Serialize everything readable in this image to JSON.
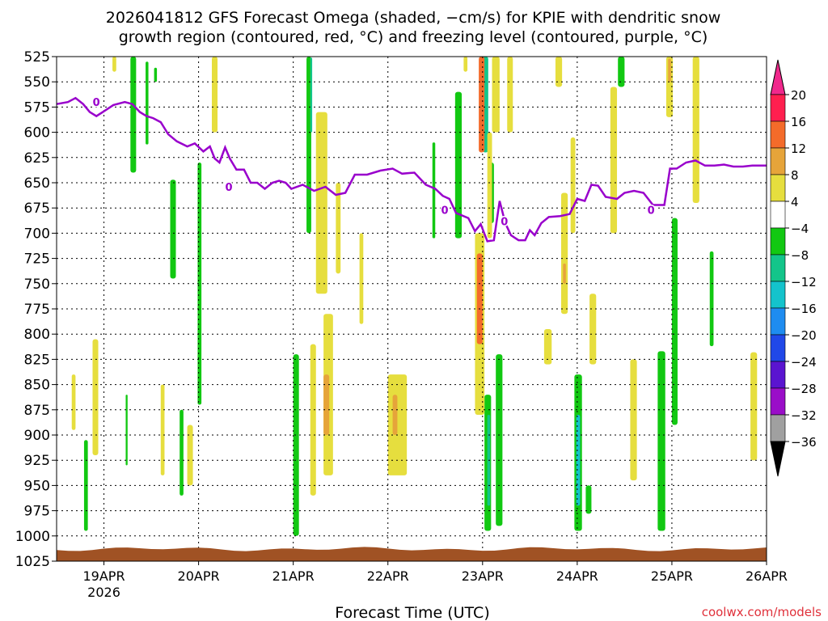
{
  "chart_data": {
    "type": "heatmap",
    "title_line1": "2026041812 GFS Forecast Omega (shaded, −cm/s) for KPIE with dendritic snow",
    "title_line2": "growth region (contoured, red, °C) and freezing level (contoured, purple, °C)",
    "xlabel": "Forecast Time (UTC)",
    "credit": "coolwx.com/models",
    "x_ticks": [
      {
        "t": 0.5,
        "label": "19APR"
      },
      {
        "t": 1.5,
        "label": "20APR"
      },
      {
        "t": 2.5,
        "label": "21APR"
      },
      {
        "t": 3.5,
        "label": "22APR"
      },
      {
        "t": 4.5,
        "label": "23APR"
      },
      {
        "t": 5.5,
        "label": "24APR"
      },
      {
        "t": 6.5,
        "label": "25APR"
      },
      {
        "t": 7.5,
        "label": "26APR"
      }
    ],
    "x_sublabel": {
      "t": 0.5,
      "label": "2026"
    },
    "x_range": [
      0,
      7.5
    ],
    "y_range": [
      525,
      1025
    ],
    "y_ticks": [
      525,
      550,
      575,
      600,
      625,
      650,
      675,
      700,
      725,
      750,
      775,
      800,
      825,
      850,
      875,
      900,
      925,
      950,
      975,
      1000,
      1025
    ],
    "colorbar": {
      "labels": [
        "20",
        "16",
        "12",
        "8",
        "4",
        "−4",
        "−8",
        "−12",
        "−16",
        "−20",
        "−24",
        "−28",
        "−32",
        "−36"
      ],
      "colors": [
        "#ff1f4f",
        "#f46b2a",
        "#e6a43a",
        "#e6de3e",
        "#ffffff",
        "#12c812",
        "#13c58a",
        "#14c3cc",
        "#1e8cf0",
        "#2048e8",
        "#5a14d0",
        "#9a0ec8",
        "#a0a0a0"
      ],
      "top_color": "#f0288c",
      "bottom_color": "#000000"
    },
    "freezing_level": {
      "color": "#9900cc",
      "label": "0",
      "points": [
        [
          0.0,
          572
        ],
        [
          0.12,
          570
        ],
        [
          0.2,
          566
        ],
        [
          0.28,
          572
        ],
        [
          0.35,
          580
        ],
        [
          0.42,
          584
        ],
        [
          0.52,
          578
        ],
        [
          0.6,
          573
        ],
        [
          0.72,
          570
        ],
        [
          0.8,
          572
        ],
        [
          0.88,
          580
        ],
        [
          0.95,
          584
        ],
        [
          1.02,
          586
        ],
        [
          1.1,
          590
        ],
        [
          1.18,
          602
        ],
        [
          1.27,
          609
        ],
        [
          1.38,
          614
        ],
        [
          1.46,
          611
        ],
        [
          1.55,
          619
        ],
        [
          1.62,
          614
        ],
        [
          1.67,
          626
        ],
        [
          1.72,
          630
        ],
        [
          1.78,
          615
        ],
        [
          1.83,
          626
        ],
        [
          1.9,
          637
        ],
        [
          1.98,
          637
        ],
        [
          2.05,
          650
        ],
        [
          2.12,
          650
        ],
        [
          2.2,
          656
        ],
        [
          2.28,
          650
        ],
        [
          2.35,
          648
        ],
        [
          2.42,
          650
        ],
        [
          2.48,
          656
        ],
        [
          2.6,
          652
        ],
        [
          2.72,
          658
        ],
        [
          2.84,
          654
        ],
        [
          2.95,
          662
        ],
        [
          3.05,
          660
        ],
        [
          3.15,
          642
        ],
        [
          3.28,
          642
        ],
        [
          3.42,
          638
        ],
        [
          3.55,
          636
        ],
        [
          3.65,
          641
        ],
        [
          3.78,
          640
        ],
        [
          3.9,
          652
        ],
        [
          4.0,
          656
        ],
        [
          4.08,
          663
        ],
        [
          4.15,
          666
        ],
        [
          4.22,
          680
        ],
        [
          4.35,
          685
        ],
        [
          4.42,
          698
        ],
        [
          4.48,
          691
        ],
        [
          4.55,
          708
        ],
        [
          4.62,
          707
        ],
        [
          4.68,
          668
        ],
        [
          4.74,
          690
        ],
        [
          4.8,
          702
        ],
        [
          4.88,
          707
        ],
        [
          4.95,
          707
        ],
        [
          5.0,
          697
        ],
        [
          5.05,
          702
        ],
        [
          5.12,
          690
        ],
        [
          5.2,
          684
        ],
        [
          5.32,
          683
        ],
        [
          5.42,
          681
        ],
        [
          5.5,
          666
        ],
        [
          5.58,
          668
        ],
        [
          5.65,
          652
        ],
        [
          5.72,
          653
        ],
        [
          5.8,
          664
        ],
        [
          5.92,
          666
        ],
        [
          6.0,
          660
        ],
        [
          6.1,
          658
        ],
        [
          6.2,
          660
        ],
        [
          6.3,
          672
        ],
        [
          6.42,
          672
        ],
        [
          6.48,
          636
        ],
        [
          6.55,
          636
        ],
        [
          6.65,
          630
        ],
        [
          6.75,
          628
        ],
        [
          6.85,
          633
        ],
        [
          6.95,
          633
        ],
        [
          7.05,
          632
        ],
        [
          7.15,
          634
        ],
        [
          7.25,
          634
        ],
        [
          7.35,
          633
        ],
        [
          7.5,
          633
        ]
      ],
      "label_points": [
        [
          0.42,
          570
        ],
        [
          1.82,
          654
        ],
        [
          4.1,
          677
        ],
        [
          4.73,
          688
        ],
        [
          6.28,
          677
        ]
      ]
    },
    "omega_shading": [
      {
        "t0": 0.78,
        "t1": 0.84,
        "p0": 525,
        "p1": 640,
        "c": "#12c812"
      },
      {
        "t0": 0.94,
        "t1": 0.97,
        "p0": 530,
        "p1": 612,
        "c": "#12c812"
      },
      {
        "t0": 1.03,
        "t1": 1.06,
        "p0": 536,
        "p1": 550,
        "c": "#12c812"
      },
      {
        "t0": 2.64,
        "t1": 2.69,
        "p0": 525,
        "p1": 700,
        "c": "#12c812"
      },
      {
        "t0": 2.68,
        "t1": 2.7,
        "p0": 526,
        "p1": 600,
        "c": "#13c58a"
      },
      {
        "t0": 1.2,
        "t1": 1.26,
        "p0": 647,
        "p1": 745,
        "c": "#12c812"
      },
      {
        "t0": 1.49,
        "t1": 1.53,
        "p0": 630,
        "p1": 870,
        "c": "#12c812"
      },
      {
        "t0": 1.3,
        "t1": 1.34,
        "p0": 875,
        "p1": 960,
        "c": "#12c812"
      },
      {
        "t0": 2.5,
        "t1": 2.56,
        "p0": 820,
        "p1": 1000,
        "c": "#12c812"
      },
      {
        "t0": 0.29,
        "t1": 0.33,
        "p0": 905,
        "p1": 995,
        "c": "#12c812"
      },
      {
        "t0": 0.73,
        "t1": 0.75,
        "p0": 860,
        "p1": 930,
        "c": "#12c812"
      },
      {
        "t0": 4.21,
        "t1": 4.28,
        "p0": 560,
        "p1": 705,
        "c": "#12c812"
      },
      {
        "t0": 3.97,
        "t1": 4.0,
        "p0": 610,
        "p1": 705,
        "c": "#12c812"
      },
      {
        "t0": 4.5,
        "t1": 4.56,
        "p0": 525,
        "p1": 620,
        "c": "#13c58a"
      },
      {
        "t0": 4.57,
        "t1": 4.62,
        "p0": 630,
        "p1": 690,
        "c": "#12c812"
      },
      {
        "t0": 4.52,
        "t1": 4.59,
        "p0": 860,
        "p1": 995,
        "c": "#12c812"
      },
      {
        "t0": 4.55,
        "t1": 4.58,
        "p0": 880,
        "p1": 970,
        "c": "#13c58a"
      },
      {
        "t0": 4.64,
        "t1": 4.71,
        "p0": 820,
        "p1": 990,
        "c": "#12c812"
      },
      {
        "t0": 5.47,
        "t1": 5.55,
        "p0": 840,
        "p1": 995,
        "c": "#12c812"
      },
      {
        "t0": 5.49,
        "t1": 5.53,
        "p0": 880,
        "p1": 970,
        "c": "#14c3cc"
      },
      {
        "t0": 5.59,
        "t1": 5.65,
        "p0": 950,
        "p1": 978,
        "c": "#12c812"
      },
      {
        "t0": 6.35,
        "t1": 6.43,
        "p0": 817,
        "p1": 995,
        "c": "#12c812"
      },
      {
        "t0": 6.5,
        "t1": 6.56,
        "p0": 685,
        "p1": 890,
        "c": "#12c812"
      },
      {
        "t0": 6.9,
        "t1": 6.94,
        "p0": 718,
        "p1": 812,
        "c": "#12c812"
      },
      {
        "t0": 5.93,
        "t1": 6.0,
        "p0": 525,
        "p1": 555,
        "c": "#12c812"
      },
      {
        "t0": 0.59,
        "t1": 0.63,
        "p0": 525,
        "p1": 540,
        "c": "#e6de3e"
      },
      {
        "t0": 0.38,
        "t1": 0.44,
        "p0": 805,
        "p1": 920,
        "c": "#e6de3e"
      },
      {
        "t0": 0.16,
        "t1": 0.2,
        "p0": 840,
        "p1": 895,
        "c": "#e6de3e"
      },
      {
        "t0": 1.1,
        "t1": 1.14,
        "p0": 850,
        "p1": 940,
        "c": "#e6de3e"
      },
      {
        "t0": 1.38,
        "t1": 1.44,
        "p0": 890,
        "p1": 950,
        "c": "#e6de3e"
      },
      {
        "t0": 1.64,
        "t1": 1.7,
        "p0": 525,
        "p1": 600,
        "c": "#e6de3e"
      },
      {
        "t0": 2.68,
        "t1": 2.74,
        "p0": 810,
        "p1": 960,
        "c": "#e6de3e"
      },
      {
        "t0": 2.74,
        "t1": 2.86,
        "p0": 580,
        "p1": 760,
        "c": "#e6de3e"
      },
      {
        "t0": 2.82,
        "t1": 2.92,
        "p0": 780,
        "p1": 940,
        "c": "#e6de3e"
      },
      {
        "t0": 2.82,
        "t1": 2.88,
        "p0": 840,
        "p1": 900,
        "c": "#e6a43a"
      },
      {
        "t0": 2.95,
        "t1": 3.0,
        "p0": 650,
        "p1": 740,
        "c": "#e6de3e"
      },
      {
        "t0": 3.2,
        "t1": 3.24,
        "p0": 700,
        "p1": 790,
        "c": "#e6de3e"
      },
      {
        "t0": 3.5,
        "t1": 3.7,
        "p0": 840,
        "p1": 940,
        "c": "#e6de3e"
      },
      {
        "t0": 3.55,
        "t1": 3.6,
        "p0": 860,
        "p1": 900,
        "c": "#e6a43a"
      },
      {
        "t0": 4.3,
        "t1": 4.34,
        "p0": 525,
        "p1": 540,
        "c": "#e6de3e"
      },
      {
        "t0": 4.42,
        "t1": 4.52,
        "p0": 700,
        "p1": 880,
        "c": "#e6de3e"
      },
      {
        "t0": 4.44,
        "t1": 4.5,
        "p0": 720,
        "p1": 810,
        "c": "#f46b2a"
      },
      {
        "t0": 4.46,
        "t1": 4.52,
        "p0": 525,
        "p1": 620,
        "c": "#f46b2a"
      },
      {
        "t0": 4.55,
        "t1": 4.6,
        "p0": 600,
        "p1": 705,
        "c": "#e6de3e"
      },
      {
        "t0": 4.6,
        "t1": 4.68,
        "p0": 525,
        "p1": 600,
        "c": "#e6de3e"
      },
      {
        "t0": 4.76,
        "t1": 4.82,
        "p0": 525,
        "p1": 600,
        "c": "#e6de3e"
      },
      {
        "t0": 5.27,
        "t1": 5.34,
        "p0": 525,
        "p1": 555,
        "c": "#e6de3e"
      },
      {
        "t0": 5.33,
        "t1": 5.4,
        "p0": 660,
        "p1": 780,
        "c": "#e6de3e"
      },
      {
        "t0": 5.35,
        "t1": 5.38,
        "p0": 730,
        "p1": 750,
        "c": "#e6a43a"
      },
      {
        "t0": 5.43,
        "t1": 5.48,
        "p0": 605,
        "p1": 700,
        "c": "#e6de3e"
      },
      {
        "t0": 5.15,
        "t1": 5.23,
        "p0": 795,
        "p1": 830,
        "c": "#e6de3e"
      },
      {
        "t0": 5.63,
        "t1": 5.7,
        "p0": 760,
        "p1": 830,
        "c": "#e6de3e"
      },
      {
        "t0": 5.85,
        "t1": 5.92,
        "p0": 555,
        "p1": 700,
        "c": "#e6de3e"
      },
      {
        "t0": 6.06,
        "t1": 6.13,
        "p0": 825,
        "p1": 945,
        "c": "#e6de3e"
      },
      {
        "t0": 6.44,
        "t1": 6.51,
        "p0": 525,
        "p1": 585,
        "c": "#e6de3e"
      },
      {
        "t0": 6.46,
        "t1": 6.49,
        "p0": 527,
        "p1": 550,
        "c": "#e6a43a"
      },
      {
        "t0": 6.72,
        "t1": 6.79,
        "p0": 525,
        "p1": 670,
        "c": "#e6de3e"
      },
      {
        "t0": 7.33,
        "t1": 7.4,
        "p0": 818,
        "p1": 925,
        "c": "#e6de3e"
      }
    ]
  }
}
